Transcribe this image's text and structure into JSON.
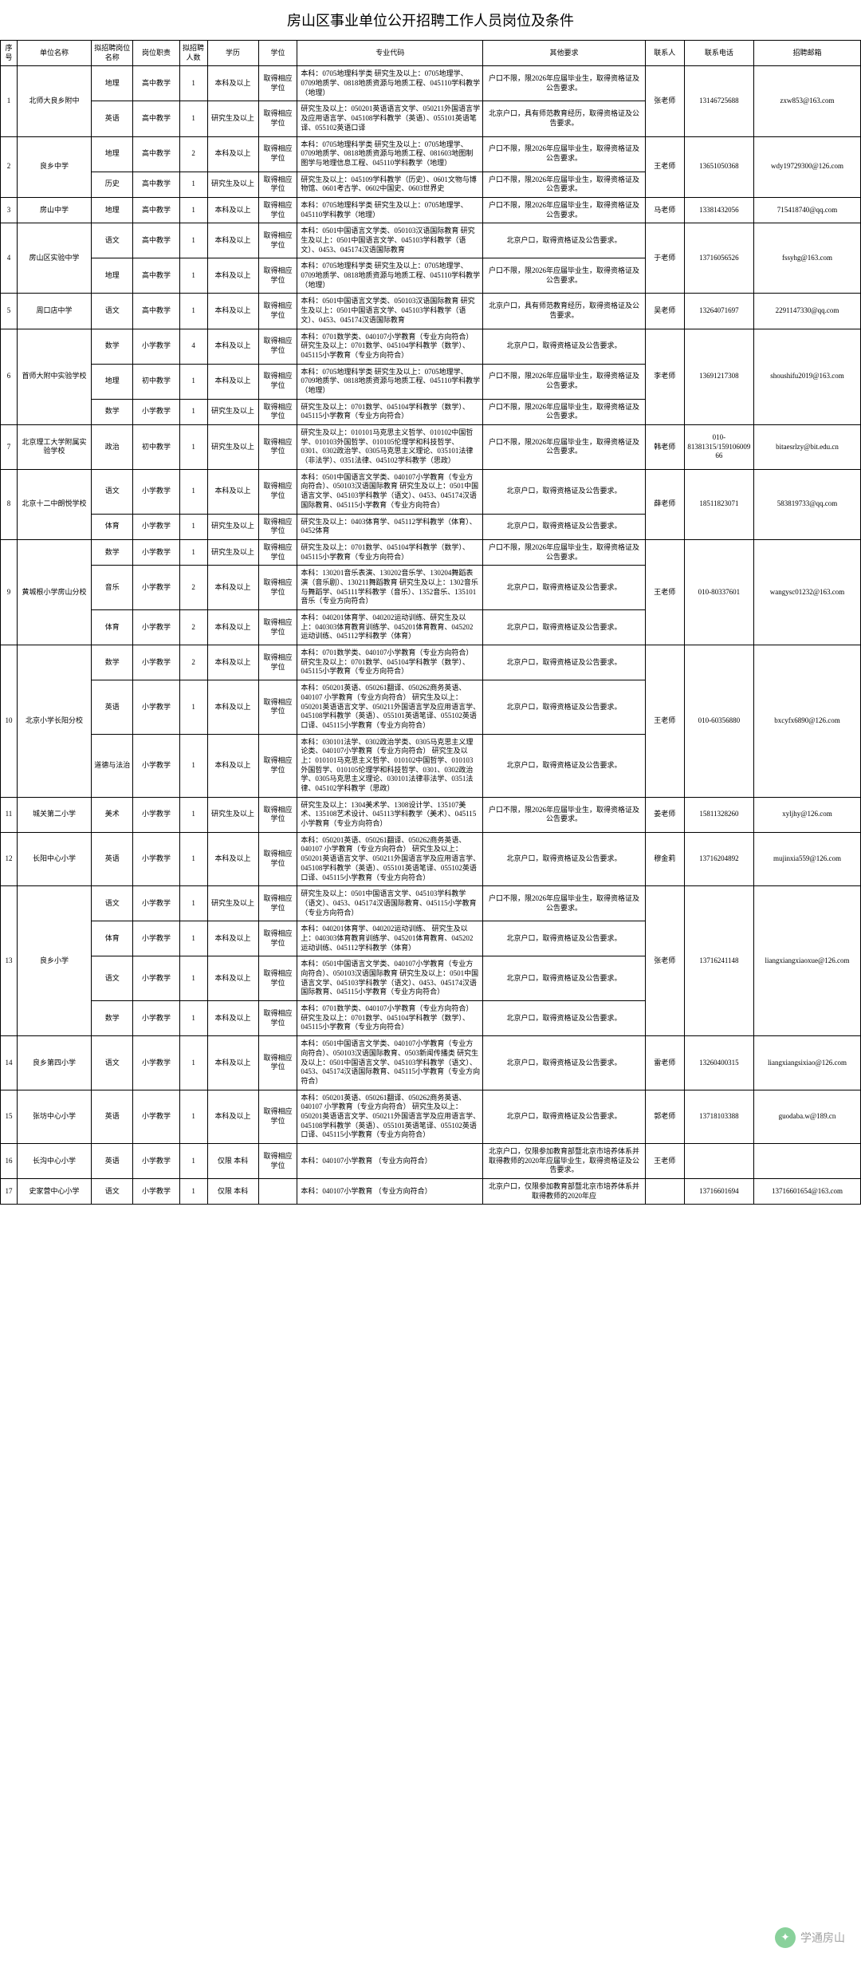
{
  "title": "房山区事业单位公开招聘工作人员岗位及条件",
  "headers": {
    "seq": "序号",
    "unit": "单位名称",
    "posname": "拟招聘岗位名称",
    "posduty": "岗位职责",
    "count": "拟招聘人数",
    "edu": "学历",
    "degree": "学位",
    "code": "专业代码",
    "other": "其他要求",
    "contact": "联系人",
    "phone": "联系电话",
    "email": "招聘邮箱"
  },
  "rows": [
    {
      "seq": "1",
      "unit": "北师大良乡附中",
      "contact": "张老师",
      "phone": "13146725688",
      "email": "zxw853@163.com",
      "subs": [
        {
          "posname": "地理",
          "posduty": "高中教学",
          "count": "1",
          "edu": "本科及以上",
          "degree": "取得相应学位",
          "code": "本科：0705地理科学类                研究生及以上：0705地理学、0709地质学、0818地质资源与地质工程、045110学科教学（地理）",
          "other": "户口不限，限2026年应届毕业生，取得资格证及公告要求。"
        },
        {
          "posname": "英语",
          "posduty": "高中教学",
          "count": "1",
          "edu": "研究生及以上",
          "degree": "取得相应学位",
          "code": "研究生及以上：050201英语语言文学、050211外国语言学及应用语言学、045108学科教学（英语）、055101英语笔译、055102英语口译",
          "other": "北京户口，具有师范教育经历，取得资格证及公告要求。"
        }
      ]
    },
    {
      "seq": "2",
      "unit": "良乡中学",
      "contact": "王老师",
      "phone": "13651050368",
      "email": "wdy19729300@126.com",
      "subs": [
        {
          "posname": "地理",
          "posduty": "高中教学",
          "count": "2",
          "edu": "本科及以上",
          "degree": "取得相应学位",
          "code": "本科：0705地理科学类              研究生及以上：0705地理学、0709地质学、0818地质资源与地质工程、081603地图制图学与地理信息工程、045110学科教学（地理）",
          "other": "户口不限，限2026年应届毕业生，取得资格证及公告要求。"
        },
        {
          "posname": "历史",
          "posduty": "高中教学",
          "count": "1",
          "edu": "研究生及以上",
          "degree": "取得相应学位",
          "code": "研究生及以上：045109学科教学（历史）、0601文物与博物馆、0601考古学、0602中国史、0603世界史",
          "other": "户口不限，限2026年应届毕业生，取得资格证及公告要求。"
        }
      ]
    },
    {
      "seq": "3",
      "unit": "房山中学",
      "contact": "马老师",
      "phone": "13381432056",
      "email": "715418740@qq.com",
      "subs": [
        {
          "posname": "地理",
          "posduty": "高中教学",
          "count": "1",
          "edu": "本科及以上",
          "degree": "取得相应学位",
          "code": "本科：0705地理科学类           研究生及以上：0705地理学、045110学科教学（地理）",
          "other": "户口不限，限2026年应届毕业生，取得资格证及公告要求。"
        }
      ]
    },
    {
      "seq": "4",
      "unit": "房山区实验中学",
      "contact": "于老师",
      "phone": "13716056526",
      "email": "fssyhg@163.com",
      "subs": [
        {
          "posname": "语文",
          "posduty": "高中教学",
          "count": "1",
          "edu": "本科及以上",
          "degree": "取得相应学位",
          "code": "本科：0501中国语言文学类、050103汉语国际教育         研究生及以上：0501中国语言文学、045103学科教学（语文）、0453、045174汉语国际教育",
          "other": "北京户口，取得资格证及公告要求。"
        },
        {
          "posname": "地理",
          "posduty": "高中教学",
          "count": "1",
          "edu": "本科及以上",
          "degree": "取得相应学位",
          "code": "本科：0705地理科学类         研究生及以上：0705地理学、0709地质学、0818地质资源与地质工程、045110学科教学（地理）",
          "other": "户口不限，限2026年应届毕业生，取得资格证及公告要求。"
        }
      ]
    },
    {
      "seq": "5",
      "unit": "周口店中学",
      "contact": "吴老师",
      "phone": "13264071697",
      "email": "2291147330@qq.com",
      "subs": [
        {
          "posname": "语文",
          "posduty": "高中教学",
          "count": "1",
          "edu": "本科及以上",
          "degree": "取得相应学位",
          "code": "本科：0501中国语言文学类、050103汉语国际教育    研究生及以上：0501中国语言文学、045103学科教学（语文）、0453、045174汉语国际教育",
          "other": "北京户口，具有师范教育经历，取得资格证及公告要求。"
        }
      ]
    },
    {
      "seq": "6",
      "unit": "首师大附中实验学校",
      "contact": "李老师",
      "phone": "13691217308",
      "email": "shoushifu2019@163.com",
      "subs": [
        {
          "posname": "数学",
          "posduty": "小学教学",
          "count": "4",
          "edu": "本科及以上",
          "degree": "取得相应学位",
          "code": "本科：0701数学类、040107小学教育（专业方向符合）    研究生及以上：0701数学、045104学科教学（数学）、045115小学教育（专业方向符合）",
          "other": "北京户口，取得资格证及公告要求。"
        },
        {
          "posname": "地理",
          "posduty": "初中教学",
          "count": "1",
          "edu": "本科及以上",
          "degree": "取得相应学位",
          "code": "本科：0705地理科学类         研究生及以上：0705地理学、0709地质学、0818地质资源与地质工程、045110学科教学（地理）",
          "other": "户口不限，限2026年应届毕业生，取得资格证及公告要求。"
        },
        {
          "posname": "数学",
          "posduty": "小学教学",
          "count": "1",
          "edu": "研究生及以上",
          "degree": "取得相应学位",
          "code": "研究生及以上：0701数学、045104学科教学（数学）、045115小学教育（专业方向符合）",
          "other": "户口不限，限2026年应届毕业生，取得资格证及公告要求。"
        }
      ]
    },
    {
      "seq": "7",
      "unit": "北京理工大学附属实验学校",
      "contact": "韩老师",
      "phone": "010-81381315/15910600966",
      "email": "bitaesrlzy@bit.edu.cn",
      "subs": [
        {
          "posname": "政治",
          "posduty": "初中教学",
          "count": "1",
          "edu": "研究生及以上",
          "degree": "取得相应学位",
          "code": "研究生及以上：010101马克思主义哲学、010102中国哲学、010103外国哲学、010105伦理学和科技哲学、0301、0302政治学、0305马克思主义理论、035101法律（非法学）、0351法律、045102学科教学（思政）",
          "other": "户口不限，限2026年应届毕业生，取得资格证及公告要求。"
        }
      ]
    },
    {
      "seq": "8",
      "unit": "北京十二中朗悦学校",
      "contact": "薛老师",
      "phone": "18511823071",
      "email": "583819733@qq.com",
      "subs": [
        {
          "posname": "语文",
          "posduty": "小学教学",
          "count": "1",
          "edu": "本科及以上",
          "degree": "取得相应学位",
          "code": "本科：0501中国语言文学类、040107小学教育（专业方向符合）、050103汉语国际教育   研究生及以上：0501中国语言文学、045103学科教学（语文）、0453、045174汉语国际教育、045115小学教育（专业方向符合）",
          "other": "北京户口，取得资格证及公告要求。"
        },
        {
          "posname": "体育",
          "posduty": "小学教学",
          "count": "1",
          "edu": "研究生及以上",
          "degree": "取得相应学位",
          "code": "研究生及以上：0403体育学、045112学科教学（体育）、0452体育",
          "other": "北京户口，取得资格证及公告要求。"
        }
      ]
    },
    {
      "seq": "9",
      "unit": "黄城根小学房山分校",
      "contact": "王老师",
      "phone": "010-80337601",
      "email": "wangysc01232@163.com",
      "subs": [
        {
          "posname": "数学",
          "posduty": "小学教学",
          "count": "1",
          "edu": "研究生及以上",
          "degree": "取得相应学位",
          "code": "研究生及以上：0701数学、045104学科教学（数学）、045115小学教育（专业方向符合）",
          "other": "户口不限，限2026年应届毕业生，取得资格证及公告要求。"
        },
        {
          "posname": "音乐",
          "posduty": "小学教学",
          "count": "2",
          "edu": "本科及以上",
          "degree": "取得相应学位",
          "code": "本科：130201音乐表演、130202音乐学、130204舞蹈表演（音乐剧）、130211舞蹈教育    研究生及以上：1302音乐与舞蹈学、045111学科教学（音乐）、1352音乐、135101音乐（专业方向符合）",
          "other": "北京户口，取得资格证及公告要求。"
        },
        {
          "posname": "体育",
          "posduty": "小学教学",
          "count": "2",
          "edu": "本科及以上",
          "degree": "取得相应学位",
          "code": "本科：040201体育学、040202运动训练、研究生及以上：040303体育教育训练学、045201体育教育、045202运动训练、045112学科教学（体育）",
          "other": "北京户口，取得资格证及公告要求。"
        }
      ]
    },
    {
      "seq": "10",
      "unit": "北京小学长阳分校",
      "contact": "王老师",
      "phone": "010-60356880",
      "email": "bxcyfx6890@126.com",
      "subs": [
        {
          "posname": "数学",
          "posduty": "小学教学",
          "count": "2",
          "edu": "本科及以上",
          "degree": "取得相应学位",
          "code": "本科：0701数学类、040107小学教育（专业方向符合）   研究生及以上：0701数学、045104学科教学（数学）、045115小学教育（专业方向符合）",
          "other": "北京户口，取得资格证及公告要求。"
        },
        {
          "posname": "英语",
          "posduty": "小学教学",
          "count": "1",
          "edu": "本科及以上",
          "degree": "取得相应学位",
          "code": "本科：050201英语、050261翻译、050262商务英语、040107 小学教育（专业方向符合）   研究生及以上：050201英语语言文学、050211外国语言学及应用语言学、045108学科教学（英语）、055101英语笔译、055102英语口译、045115小学教育（专业方向符合）",
          "other": "北京户口，取得资格证及公告要求。"
        },
        {
          "posname": "道德与法治",
          "posduty": "小学教学",
          "count": "1",
          "edu": "本科及以上",
          "degree": "取得相应学位",
          "code": "本科：030101法学、0302政治学类、0305马克思主义理论类、040107小学教育（专业方向符合）   研究生及以上：010101马克思主义哲学、010102中国哲学、010103外国哲学、010105伦理学和科技哲学、0301、0302政治学、0305马克思主义理论、030101法律非法学、0351法律、045102学科教学（思政）",
          "other": "北京户口，取得资格证及公告要求。"
        }
      ]
    },
    {
      "seq": "11",
      "unit": "城关第二小学",
      "contact": "姜老师",
      "phone": "15811328260",
      "email": "xyljhy@126.com",
      "subs": [
        {
          "posname": "美术",
          "posduty": "小学教学",
          "count": "1",
          "edu": "研究生及以上",
          "degree": "取得相应学位",
          "code": "研究生及以上：1304美术学、1308设计学、135107美术、135108艺术设计、045113学科教学（美术）、045115小学教育（专业方向符合）",
          "other": "户口不限，限2026年应届毕业生，取得资格证及公告要求。"
        }
      ]
    },
    {
      "seq": "12",
      "unit": "长阳中心小学",
      "contact": "穆金莉",
      "phone": "13716204892",
      "email": "mujinxia559@126.com",
      "subs": [
        {
          "posname": "英语",
          "posduty": "小学教学",
          "count": "1",
          "edu": "本科及以上",
          "degree": "取得相应学位",
          "code": "本科：050201英语、050261翻译、050262商务英语、040107 小学教育（专业方向符合）   研究生及以上：050201英语语言文学、050211外国语言学及应用语言学、045108学科教学（英语）、055101英语笔译、055102英语口译、045115小学教育（专业方向符合）",
          "other": "北京户口，取得资格证及公告要求。"
        }
      ]
    },
    {
      "seq": "13",
      "unit": "良乡小学",
      "contact": "张老师",
      "phone": "13716241148",
      "email": "liangxiangxiaoxue@126.com",
      "subs": [
        {
          "posname": "语文",
          "posduty": "小学教学",
          "count": "1",
          "edu": "研究生及以上",
          "degree": "取得相应学位",
          "code": "研究生及以上：0501中国语言文学、045103学科教学（语文）、0453、045174汉语国际教育、045115小学教育（专业方向符合）",
          "other": "户口不限，限2026年应届毕业生，取得资格证及公告要求。"
        },
        {
          "posname": "体育",
          "posduty": "小学教学",
          "count": "1",
          "edu": "本科及以上",
          "degree": "取得相应学位",
          "code": "本科：040201体育学、040202运动训练、   研究生及以上：040303体育教育训练学、045201体育教育、045202运动训练、045112学科教学（体育）",
          "other": "北京户口，取得资格证及公告要求。"
        },
        {
          "posname": "语文",
          "posduty": "小学教学",
          "count": "1",
          "edu": "本科及以上",
          "degree": "取得相应学位",
          "code": "本科：0501中国语言文学类、040107小学教育（专业方向符合）、050103汉语国际教育   研究生及以上：0501中国语言文学、045103学科教学（语文）、0453、045174汉语国际教育、045115小学教育（专业方向符合）",
          "other": "北京户口，取得资格证及公告要求。"
        },
        {
          "posname": "数学",
          "posduty": "小学教学",
          "count": "1",
          "edu": "本科及以上",
          "degree": "取得相应学位",
          "code": "本科：0701数学类、040107小学教育（专业方向符合）   研究生及以上：0701数学、045104学科教学（数学）、045115小学教育（专业方向符合）",
          "other": "北京户口，取得资格证及公告要求。"
        }
      ]
    },
    {
      "seq": "14",
      "unit": "良乡第四小学",
      "contact": "雷老师",
      "phone": "13260400315",
      "email": "liangxiangsixiao@126.com",
      "subs": [
        {
          "posname": "语文",
          "posduty": "小学教学",
          "count": "1",
          "edu": "本科及以上",
          "degree": "取得相应学位",
          "code": "本科：0501中国语言文学类、040107小学教育（专业方向符合）、050103汉语国际教育、0503新闻传播类   研究生及以上：0501中国语言文学、045103学科教学（语文）、0453、045174汉语国际教育、045115小学教育（专业方向符合）",
          "other": "北京户口，取得资格证及公告要求。"
        }
      ]
    },
    {
      "seq": "15",
      "unit": "张坊中心小学",
      "contact": "郭老师",
      "phone": "13718103388",
      "email": "guodaba.w@189.cn",
      "subs": [
        {
          "posname": "英语",
          "posduty": "小学教学",
          "count": "1",
          "edu": "本科及以上",
          "degree": "取得相应学位",
          "code": "本科：050201英语、050261翻译、050262商务英语、040107 小学教育（专业方向符合）   研究生及以上：050201英语语言文学、050211外国语言学及应用语言学、045108学科教学（英语）、055101英语笔译、055102英语口译、045115小学教育（专业方向符合）",
          "other": "北京户口，取得资格证及公告要求。"
        }
      ]
    },
    {
      "seq": "16",
      "unit": "长沟中心小学",
      "contact": "王老师",
      "phone": "",
      "email": "",
      "subs": [
        {
          "posname": "英语",
          "posduty": "小学教学",
          "count": "1",
          "edu": "仅限 本科",
          "degree": "取得相应学位",
          "code": "本科：040107小学教育      （专业方向符合）",
          "other": "北京户口，仅限参加教育部暨北京市培养体系并取得教师的2020年应届毕业生，取得资格证及公告要求。"
        }
      ]
    },
    {
      "seq": "17",
      "unit": "史家营中心小学",
      "contact": "",
      "phone": "13716601694",
      "email": "13716601654@163.com",
      "subs": [
        {
          "posname": "语文",
          "posduty": "小学教学",
          "count": "1",
          "edu": "仅限 本科",
          "degree": "",
          "code": "本科：040107小学教育      （专业方向符合）",
          "other": "北京户口，仅限参加教育部暨北京市培养体系并取得教师的2020年应"
        }
      ]
    }
  ],
  "watermark": "学通房山"
}
